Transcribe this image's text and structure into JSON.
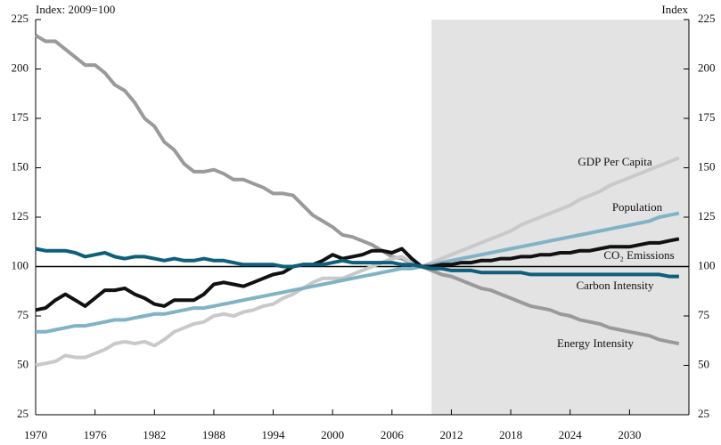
{
  "chart_data": {
    "type": "line",
    "y_label": "Index: 2009=100",
    "y2_label": "Index",
    "x": [
      1970,
      1971,
      1972,
      1973,
      1974,
      1975,
      1976,
      1977,
      1978,
      1979,
      1980,
      1981,
      1982,
      1983,
      1984,
      1985,
      1986,
      1987,
      1988,
      1989,
      1990,
      1991,
      1992,
      1993,
      1994,
      1995,
      1996,
      1997,
      1998,
      1999,
      2000,
      2001,
      2002,
      2003,
      2004,
      2005,
      2006,
      2007,
      2008,
      2009,
      2010,
      2011,
      2012,
      2013,
      2014,
      2015,
      2016,
      2017,
      2018,
      2019,
      2020,
      2021,
      2022,
      2023,
      2024,
      2025,
      2026,
      2027,
      2028,
      2029,
      2030,
      2031,
      2032,
      2033,
      2034,
      2035
    ],
    "xlim": [
      1970,
      2036
    ],
    "xticks": [
      1970,
      1976,
      1982,
      1988,
      1994,
      2000,
      2006,
      2012,
      2018,
      2024,
      2030
    ],
    "ylim": [
      25,
      225
    ],
    "yticks": [
      25,
      50,
      75,
      100,
      125,
      150,
      175,
      200,
      225
    ],
    "y2lim": [
      25,
      225
    ],
    "y2ticks": [
      25,
      50,
      75,
      100,
      125,
      150,
      175,
      200,
      225
    ],
    "reference_line": 100,
    "shaded_region": [
      2010,
      2036
    ],
    "shade_color": "#e3e3e3",
    "series": [
      {
        "name": "Energy Intensity",
        "color": "#9a9a9a",
        "values": [
          217,
          214,
          214,
          210,
          206,
          202,
          202,
          198,
          192,
          189,
          183,
          175,
          171,
          163,
          159,
          152,
          148,
          148,
          149,
          147,
          144,
          144,
          142,
          140,
          137,
          137,
          136,
          131,
          126,
          123,
          120,
          116,
          115,
          113,
          111,
          108,
          105,
          104,
          102,
          100,
          98,
          96,
          95,
          93,
          91,
          89,
          88,
          86,
          84,
          82,
          80,
          79,
          78,
          76,
          75,
          73,
          72,
          71,
          69,
          68,
          67,
          66,
          65,
          63,
          62,
          61
        ]
      },
      {
        "name": "GDP Per Capita",
        "color": "#c9c9c9",
        "values": [
          50,
          51,
          52,
          55,
          54,
          54,
          56,
          58,
          61,
          62,
          61,
          62,
          60,
          63,
          67,
          69,
          71,
          72,
          75,
          76,
          75,
          77,
          78,
          80,
          81,
          84,
          86,
          89,
          92,
          94,
          94,
          94,
          96,
          98,
          100,
          102,
          104,
          105,
          102,
          100,
          102,
          104,
          106,
          108,
          110,
          112,
          114,
          116,
          118,
          121,
          123,
          125,
          127,
          129,
          131,
          134,
          136,
          138,
          141,
          143,
          145,
          147,
          149,
          151,
          153,
          155
        ]
      },
      {
        "name": "Population",
        "color": "#80b3c6",
        "values": [
          67,
          67,
          68,
          69,
          70,
          70,
          71,
          72,
          73,
          73,
          74,
          75,
          76,
          76,
          77,
          78,
          79,
          79,
          80,
          81,
          82,
          83,
          84,
          85,
          86,
          87,
          88,
          89,
          90,
          91,
          92,
          93,
          94,
          95,
          96,
          97,
          98,
          99,
          99,
          100,
          101,
          102,
          103,
          104,
          105,
          106,
          107,
          108,
          109,
          110,
          111,
          112,
          113,
          114,
          115,
          116,
          117,
          118,
          119,
          120,
          121,
          122,
          123,
          125,
          126,
          127
        ]
      },
      {
        "name": "CO₂ Emissions",
        "color": "#111111",
        "values": [
          78,
          79,
          83,
          86,
          83,
          80,
          84,
          88,
          88,
          89,
          86,
          84,
          81,
          80,
          83,
          83,
          83,
          86,
          91,
          92,
          91,
          90,
          92,
          94,
          96,
          97,
          100,
          101,
          101,
          103,
          106,
          104,
          105,
          106,
          108,
          108,
          107,
          109,
          104,
          100,
          100,
          101,
          101,
          102,
          102,
          103,
          103,
          104,
          104,
          105,
          105,
          106,
          106,
          107,
          107,
          108,
          108,
          109,
          110,
          110,
          110,
          111,
          112,
          112,
          113,
          114
        ]
      },
      {
        "name": "Carbon Intensity",
        "color": "#0e5f7c",
        "values": [
          109,
          108,
          108,
          108,
          107,
          105,
          106,
          107,
          105,
          104,
          105,
          105,
          104,
          103,
          104,
          103,
          103,
          104,
          103,
          103,
          102,
          101,
          101,
          101,
          101,
          100,
          100,
          101,
          101,
          101,
          102,
          103,
          102,
          102,
          102,
          102,
          102,
          101,
          101,
          100,
          99,
          99,
          98,
          98,
          98,
          97,
          97,
          97,
          97,
          97,
          96,
          96,
          96,
          96,
          96,
          96,
          96,
          96,
          96,
          96,
          96,
          96,
          96,
          96,
          95,
          95
        ]
      }
    ]
  }
}
